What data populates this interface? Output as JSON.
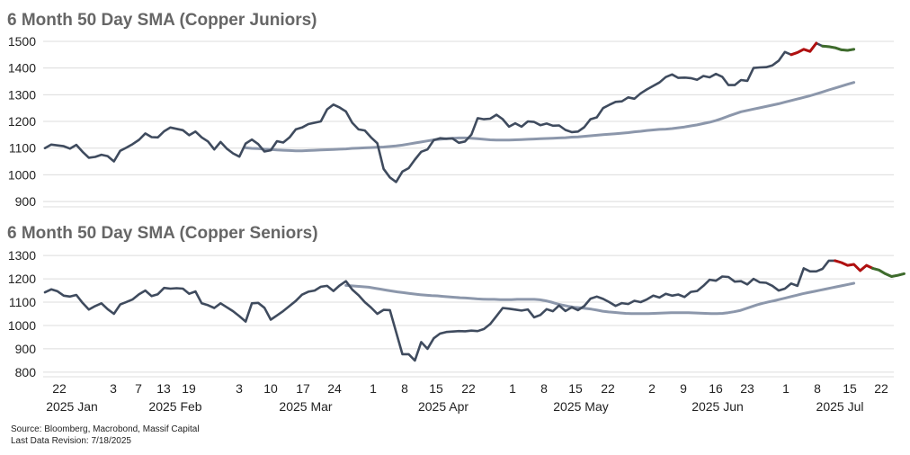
{
  "chart_data": [
    {
      "type": "line",
      "title": "6 Month 50 Day SMA (Copper Juniors)",
      "y_ticks": [
        900,
        1000,
        1100,
        1200,
        1300,
        1400,
        1500
      ],
      "ylim": [
        880,
        1520
      ],
      "grid": true,
      "colors": {
        "price": "#3f4b5e",
        "sma": "#8c97ab",
        "red": "#b01010",
        "green": "#3e6b2c"
      },
      "series": [
        {
          "key": "price",
          "values": [
            1100,
            1113,
            1110,
            1107,
            1098,
            1112,
            1086,
            1064,
            1067,
            1075,
            1070,
            1050,
            1090,
            1102,
            1115,
            1131,
            1155,
            1141,
            1140,
            1163,
            1177,
            1172,
            1167,
            1148,
            1162,
            1140,
            1125,
            1095,
            1123,
            1098,
            1080,
            1068,
            1117,
            1132,
            1115,
            1087,
            1092,
            1126,
            1121,
            1140,
            1170,
            1177,
            1190,
            1195,
            1200,
            1245,
            1263,
            1252,
            1237,
            1195,
            1170,
            1166,
            1140,
            1118,
            1022,
            990,
            973,
            1012,
            1025,
            1057,
            1086,
            1095,
            1130,
            1137,
            1135,
            1136,
            1120,
            1125,
            1150,
            1212,
            1208,
            1210,
            1225,
            1208,
            1180,
            1193,
            1180,
            1200,
            1198,
            1186,
            1192,
            1184,
            1185,
            1168,
            1160,
            1162,
            1178,
            1208,
            1215,
            1250,
            1262,
            1273,
            1275,
            1290,
            1285,
            1305,
            1320,
            1333,
            1346,
            1366,
            1376,
            1363,
            1364,
            1362,
            1356,
            1370,
            1365,
            1378,
            1367,
            1336,
            1336,
            1355,
            1352,
            1400,
            1402,
            1403,
            1410,
            1427,
            1460,
            1450,
            1458,
            1470,
            1462,
            1493,
            1482,
            1480,
            1476,
            1468,
            1466,
            1470
          ]
        },
        {
          "key": "sma",
          "values": [
            1101,
            1099,
            1098,
            1096,
            1095,
            1093,
            1092,
            1091,
            1090,
            1090,
            1091,
            1092,
            1093,
            1094,
            1095,
            1096,
            1097,
            1099,
            1100,
            1101,
            1102,
            1103,
            1104,
            1106,
            1108,
            1111,
            1115,
            1119,
            1123,
            1127,
            1131,
            1133,
            1135,
            1137,
            1138,
            1138,
            1137,
            1135,
            1133,
            1131,
            1130,
            1130,
            1130,
            1131,
            1132,
            1133,
            1134,
            1135,
            1136,
            1137,
            1138,
            1139,
            1141,
            1142,
            1144,
            1146,
            1148,
            1150,
            1152,
            1154,
            1156,
            1158,
            1161,
            1163,
            1166,
            1168,
            1170,
            1171,
            1173,
            1176,
            1179,
            1183,
            1187,
            1192,
            1197,
            1203,
            1211,
            1220,
            1228,
            1236,
            1241,
            1246,
            1251,
            1256,
            1261,
            1266,
            1272,
            1278,
            1284,
            1290,
            1296,
            1303,
            1310,
            1318,
            1325,
            1332,
            1339,
            1346
          ]
        },
        {
          "key": "red",
          "values": [
            1450,
            1458,
            1470,
            1462,
            1493
          ]
        },
        {
          "key": "green",
          "values": [
            1482,
            1480,
            1476,
            1468,
            1466,
            1470
          ]
        }
      ]
    },
    {
      "type": "line",
      "title": "6 Month 50 Day SMA (Copper Seniors)",
      "y_ticks": [
        800,
        900,
        1000,
        1100,
        1200,
        1300
      ],
      "ylim": [
        780,
        1320
      ],
      "grid": true,
      "colors": {
        "price": "#3f4b5e",
        "sma": "#8c97ab",
        "red": "#b01010",
        "green": "#3e6b2c"
      },
      "series": [
        {
          "key": "price",
          "values": [
            1142,
            1155,
            1147,
            1128,
            1124,
            1131,
            1097,
            1068,
            1083,
            1095,
            1070,
            1050,
            1090,
            1101,
            1112,
            1134,
            1150,
            1126,
            1134,
            1161,
            1158,
            1160,
            1158,
            1136,
            1146,
            1095,
            1087,
            1075,
            1095,
            1078,
            1061,
            1040,
            1017,
            1095,
            1097,
            1076,
            1025,
            1043,
            1062,
            1084,
            1105,
            1132,
            1145,
            1150,
            1166,
            1170,
            1148,
            1172,
            1190,
            1154,
            1130,
            1100,
            1077,
            1050,
            1067,
            1066,
            972,
            877,
            877,
            850,
            929,
            900,
            945,
            965,
            972,
            974,
            976,
            975,
            978,
            976,
            985,
            1006,
            1040,
            1075,
            1072,
            1068,
            1064,
            1069,
            1035,
            1045,
            1070,
            1061,
            1086,
            1062,
            1078,
            1066,
            1083,
            1115,
            1124,
            1114,
            1100,
            1084,
            1096,
            1092,
            1106,
            1100,
            1112,
            1128,
            1120,
            1136,
            1128,
            1133,
            1122,
            1144,
            1148,
            1170,
            1196,
            1192,
            1210,
            1208,
            1188,
            1190,
            1176,
            1200,
            1185,
            1183,
            1170,
            1150,
            1158,
            1180,
            1170,
            1245,
            1232,
            1232,
            1243,
            1278,
            1278,
            1270,
            1258,
            1262,
            1235,
            1258,
            1245,
            1238,
            1222,
            1210,
            1215,
            1222
          ]
        },
        {
          "key": "sma",
          "values": [
            1172,
            1170,
            1168,
            1166,
            1164,
            1160,
            1156,
            1152,
            1148,
            1144,
            1141,
            1138,
            1135,
            1132,
            1130,
            1128,
            1127,
            1125,
            1123,
            1121,
            1119,
            1118,
            1116,
            1114,
            1113,
            1112,
            1112,
            1111,
            1111,
            1111,
            1112,
            1112,
            1112,
            1112,
            1110,
            1106,
            1100,
            1093,
            1087,
            1082,
            1078,
            1076,
            1073,
            1070,
            1066,
            1061,
            1058,
            1056,
            1054,
            1052,
            1051,
            1051,
            1051,
            1051,
            1052,
            1053,
            1054,
            1055,
            1055,
            1055,
            1055,
            1054,
            1053,
            1052,
            1051,
            1051,
            1052,
            1055,
            1059,
            1064,
            1072,
            1080,
            1088,
            1095,
            1101,
            1106,
            1112,
            1118,
            1124,
            1130,
            1136,
            1141,
            1146,
            1151,
            1156,
            1161,
            1166,
            1171,
            1176,
            1181
          ]
        },
        {
          "key": "red",
          "values": [
            1278,
            1270,
            1258,
            1262,
            1235,
            1258,
            1245
          ]
        },
        {
          "key": "green",
          "values": [
            1245,
            1238,
            1222,
            1210,
            1215,
            1222
          ]
        }
      ]
    }
  ],
  "x_ticks": [
    "22",
    "3",
    "7",
    "13",
    "19",
    "3",
    "10",
    "17",
    "24",
    "1",
    "8",
    "15",
    "22",
    "1",
    "8",
    "15",
    "22",
    "2",
    "9",
    "16",
    "23",
    "1",
    "8",
    "15",
    "22"
  ],
  "months": [
    "2025 Jan",
    "2025 Feb",
    "2025 Mar",
    "2025 Apr",
    "2025 May",
    "2025 Jun",
    "2025 Jul"
  ],
  "footer": {
    "source": "Source: Bloomberg, Macrobond, Massif Capital",
    "revision": "Last Data Revision: 7/18/2025"
  }
}
